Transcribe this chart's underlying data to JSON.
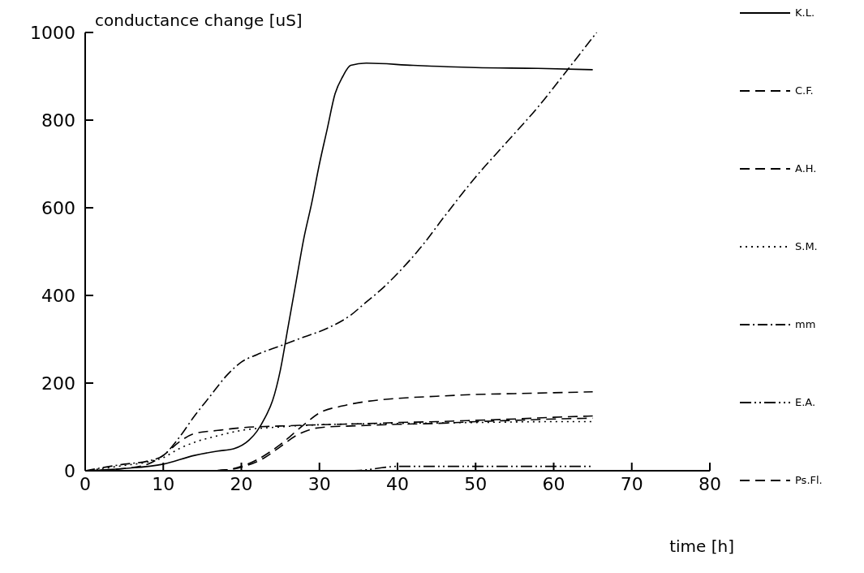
{
  "chart_data": {
    "type": "line",
    "xlabel": "time [h]",
    "ylabel": "conductance change [uS]",
    "xlim": [
      0,
      80
    ],
    "xticks": [
      0,
      10,
      20,
      30,
      40,
      50,
      60,
      70,
      80
    ],
    "ylim": [
      0,
      1000
    ],
    "yticks": [
      0,
      200,
      400,
      600,
      800,
      1000
    ],
    "grid": false,
    "legend": "right",
    "marker": "none",
    "series": [
      {
        "name": "K.L.",
        "color": "#000000",
        "line_style": "solid",
        "x": [
          0,
          5,
          10,
          14,
          17,
          19,
          21,
          22,
          23,
          24,
          25,
          26,
          27,
          28,
          29,
          30,
          31,
          32,
          33,
          34,
          36,
          42,
          50,
          58,
          65
        ],
        "values": [
          0,
          5,
          15,
          35,
          45,
          50,
          70,
          90,
          120,
          160,
          230,
          330,
          430,
          530,
          610,
          700,
          780,
          860,
          900,
          925,
          930,
          925,
          920,
          918,
          915
        ]
      },
      {
        "name": "C.F.",
        "color": "#000000",
        "line_style": "dashed",
        "x": [
          0,
          5,
          8,
          10,
          12,
          14,
          17,
          20,
          25,
          30,
          35,
          40,
          45,
          50,
          55,
          60,
          65
        ],
        "values": [
          0,
          5,
          15,
          35,
          65,
          85,
          92,
          98,
          102,
          105,
          107,
          110,
          112,
          115,
          118,
          122,
          125
        ]
      },
      {
        "name": "A.H.",
        "color": "#000000",
        "line_style": "dashed",
        "x": [
          15,
          18,
          20,
          22,
          25,
          28,
          30,
          33,
          36,
          40,
          45,
          50,
          55,
          60,
          65
        ],
        "values": [
          0,
          2,
          10,
          25,
          60,
          105,
          132,
          148,
          158,
          165,
          170,
          174,
          176,
          178,
          180
        ]
      },
      {
        "name": "S.M.",
        "color": "#000000",
        "line_style": "dotted",
        "x": [
          0,
          5,
          8,
          10,
          12,
          14,
          17,
          20,
          25,
          30,
          40,
          50,
          60,
          65
        ],
        "values": [
          0,
          12,
          20,
          30,
          50,
          65,
          80,
          92,
          100,
          105,
          108,
          110,
          112,
          112
        ]
      },
      {
        "name": "mm",
        "color": "#000000",
        "line_style": "dashdot",
        "x": [
          0,
          5,
          8,
          10,
          12,
          14,
          16,
          18,
          20,
          22,
          25,
          28,
          31,
          34,
          36,
          38,
          40,
          43,
          46,
          50,
          54,
          58,
          62,
          65.5
        ],
        "values": [
          0,
          15,
          22,
          35,
          75,
          125,
          170,
          215,
          248,
          265,
          285,
          305,
          325,
          355,
          385,
          415,
          450,
          510,
          580,
          670,
          750,
          830,
          920,
          1000
        ]
      },
      {
        "name": "E.A.",
        "color": "#000000",
        "line_style": "dashdotdot",
        "x": [
          34,
          36,
          38,
          40,
          45,
          50,
          55,
          60,
          65
        ],
        "values": [
          0,
          2,
          7,
          10,
          10,
          10,
          10,
          10,
          10
        ]
      },
      {
        "name": "Ps.Fl.",
        "color": "#000000",
        "line_style": "dashed",
        "x": [
          17,
          20,
          23,
          25,
          27,
          29,
          31,
          34,
          40,
          45,
          50,
          55,
          60,
          65
        ],
        "values": [
          0,
          8,
          30,
          55,
          80,
          95,
          100,
          102,
          106,
          108,
          112,
          115,
          118,
          120
        ]
      }
    ]
  }
}
